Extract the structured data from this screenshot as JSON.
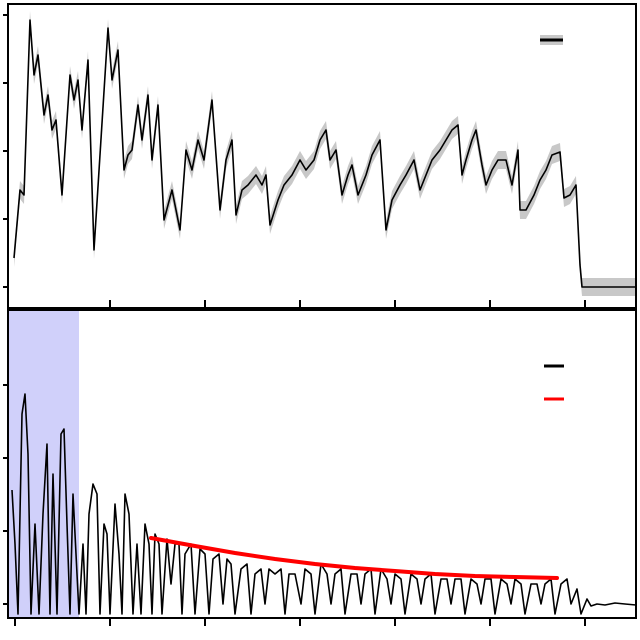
{
  "chart_data": [
    {
      "type": "line",
      "xlim": [
        -7,
        621
      ],
      "ylim": [
        -21,
        283
      ],
      "xticks": [
        95,
        190,
        285,
        380,
        475,
        570
      ],
      "yticks": [
        0,
        68,
        136,
        204,
        272
      ],
      "x": [
        -1,
        5,
        9,
        15,
        19,
        23,
        29,
        33,
        37,
        41,
        47,
        55,
        59,
        63,
        67,
        73,
        79,
        93,
        97,
        103,
        109,
        113,
        117,
        123,
        127,
        133,
        137,
        143,
        149,
        157,
        165,
        171,
        177,
        183,
        189,
        197,
        205,
        211,
        217,
        221,
        227,
        233,
        241,
        247,
        251,
        255,
        263,
        269,
        277,
        285,
        291,
        299,
        305,
        311,
        315,
        321,
        327,
        333,
        337,
        343,
        351,
        357,
        365,
        371,
        377,
        385,
        391,
        399,
        405,
        411,
        417,
        425,
        431,
        437,
        443,
        447,
        451,
        457,
        461,
        467,
        471,
        477,
        483,
        491,
        497,
        503,
        505,
        511,
        519,
        525,
        531,
        537,
        545,
        549,
        555,
        561,
        565,
        567,
        621
      ],
      "series": [
        {
          "color": "#000000",
          "band_color": "#c8c8c8",
          "error": 9,
          "values": [
            29,
            97,
            92,
            267,
            212,
            232,
            172,
            192,
            157,
            167,
            92,
            212,
            187,
            207,
            157,
            227,
            37,
            259,
            207,
            237,
            117,
            132,
            137,
            182,
            147,
            192,
            127,
            182,
            67,
            97,
            57,
            137,
            117,
            147,
            127,
            187,
            77,
            127,
            147,
            72,
            97,
            102,
            112,
            102,
            112,
            62,
            87,
            102,
            112,
            127,
            117,
            127,
            147,
            157,
            127,
            137,
            92,
            112,
            122,
            92,
            112,
            132,
            147,
            57,
            87,
            102,
            112,
            127,
            97,
            112,
            127,
            137,
            147,
            157,
            162,
            112,
            127,
            147,
            157,
            122,
            102,
            117,
            127,
            127,
            102,
            137,
            77,
            77,
            92,
            107,
            117,
            132,
            135,
            89,
            92,
            102,
            22,
            0,
            0
          ]
        }
      ]
    },
    {
      "type": "line",
      "xlim": [
        -7,
        621
      ],
      "ylim": [
        -14,
        294
      ],
      "xticks": [
        0,
        95,
        190,
        285,
        380,
        475,
        570
      ],
      "yticks": [
        0,
        73,
        146,
        219
      ],
      "span": [
        -7,
        64
      ],
      "span_color": "#d0d0fa",
      "x": [
        -3,
        0,
        3,
        7,
        10,
        13,
        16,
        20,
        24,
        28,
        32,
        35,
        38,
        42,
        46,
        49,
        52,
        55,
        58,
        61,
        64,
        68,
        71,
        74,
        78,
        82,
        85,
        89,
        92,
        95,
        100,
        104,
        107,
        110,
        114,
        118,
        122,
        126,
        130,
        134,
        137,
        140,
        144,
        147,
        152,
        156,
        160,
        164,
        167,
        170,
        176,
        180,
        185,
        190,
        194,
        198,
        204,
        208,
        212,
        216,
        220,
        226,
        232,
        236,
        240,
        246,
        250,
        254,
        260,
        266,
        270,
        274,
        280,
        286,
        290,
        296,
        300,
        306,
        312,
        316,
        320,
        326,
        330,
        336,
        342,
        346,
        350,
        356,
        360,
        366,
        372,
        376,
        380,
        386,
        390,
        396,
        402,
        406,
        410,
        416,
        420,
        426,
        432,
        436,
        440,
        446,
        450,
        456,
        462,
        466,
        470,
        476,
        480,
        486,
        492,
        496,
        500,
        506,
        510,
        516,
        522,
        526,
        530,
        536,
        540,
        546,
        552,
        556,
        562,
        566,
        572,
        576,
        582,
        590,
        600,
        610,
        621
      ],
      "series": [
        {
          "color": "#000000",
          "values": [
            114,
            60,
            -10,
            190,
            210,
            150,
            -10,
            80,
            -10,
            90,
            160,
            -10,
            130,
            -10,
            170,
            175,
            80,
            -10,
            110,
            50,
            -10,
            60,
            -10,
            90,
            120,
            110,
            -10,
            80,
            70,
            -10,
            100,
            50,
            -10,
            110,
            90,
            -10,
            60,
            -10,
            80,
            60,
            -10,
            70,
            60,
            -10,
            65,
            20,
            60,
            60,
            -10,
            50,
            60,
            -10,
            55,
            50,
            -10,
            45,
            50,
            0,
            45,
            40,
            -10,
            35,
            40,
            -10,
            30,
            35,
            0,
            35,
            30,
            35,
            -10,
            30,
            30,
            0,
            35,
            30,
            -10,
            40,
            30,
            0,
            30,
            35,
            -10,
            30,
            30,
            0,
            30,
            35,
            -10,
            35,
            25,
            0,
            30,
            25,
            -10,
            30,
            25,
            0,
            25,
            30,
            -10,
            25,
            25,
            0,
            25,
            25,
            -10,
            25,
            20,
            0,
            25,
            25,
            -10,
            25,
            20,
            0,
            25,
            20,
            -10,
            20,
            20,
            0,
            20,
            25,
            -10,
            20,
            25,
            0,
            15,
            -10,
            5,
            -2,
            0,
            -1,
            1,
            0,
            -1
          ]
        }
      ],
      "fit": {
        "color": "#ff0000",
        "x": [
          136,
          180,
          220,
          260,
          300,
          340,
          380,
          420,
          460,
          500,
          542
        ],
        "values": [
          66,
          58,
          51,
          45,
          40,
          36,
          33,
          30,
          28,
          27,
          26
        ]
      }
    }
  ]
}
